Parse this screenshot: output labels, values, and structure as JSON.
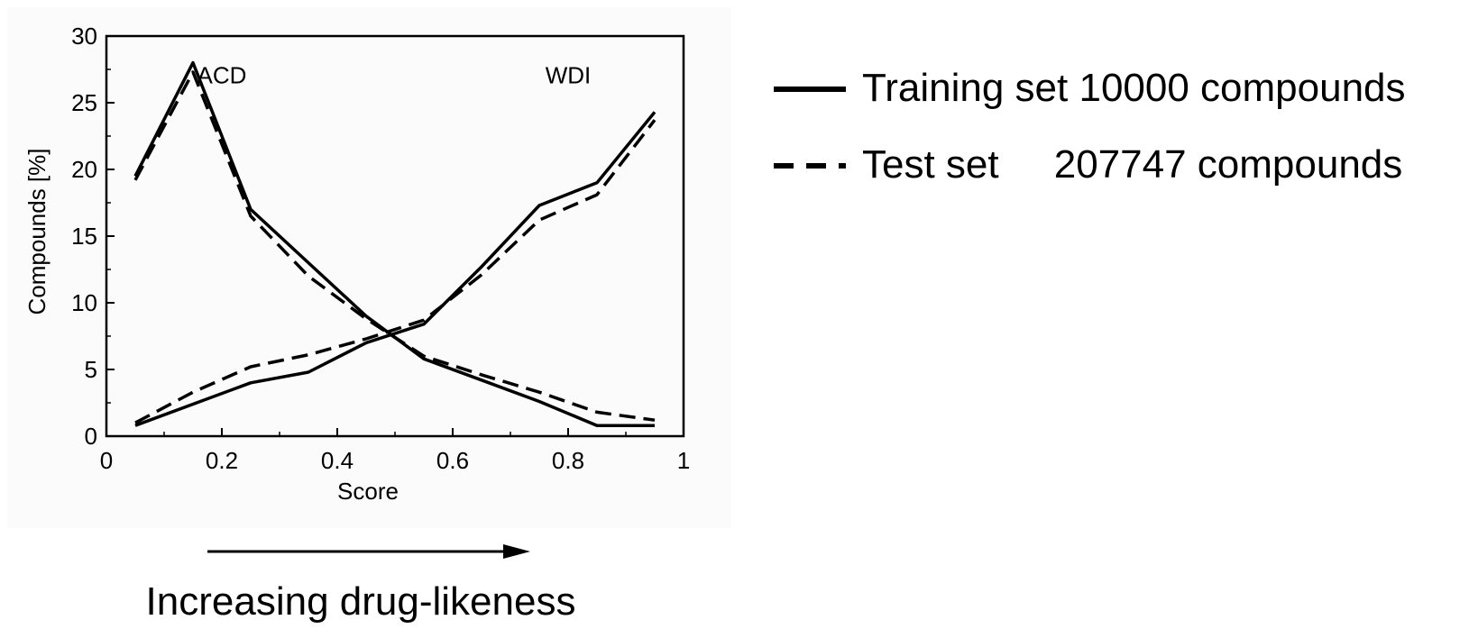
{
  "chart_data": {
    "type": "line",
    "xlabel": "Score",
    "ylabel": "Compounds [%]",
    "xlim": [
      0,
      1
    ],
    "ylim": [
      0,
      30
    ],
    "xticks": [
      0,
      0.2,
      0.4,
      0.6,
      0.8,
      1
    ],
    "xtick_labels": [
      "0",
      "0.2",
      "0.4",
      "0.6",
      "0.8",
      "1"
    ],
    "yticks": [
      0,
      5,
      10,
      15,
      20,
      25,
      30
    ],
    "ytick_labels": [
      "0",
      "5",
      "10",
      "15",
      "20",
      "25",
      "30"
    ],
    "grid": false,
    "annotations": [
      {
        "text": "ACD",
        "x": 0.2,
        "y": 27
      },
      {
        "text": "WDI",
        "x": 0.8,
        "y": 27
      }
    ],
    "x": [
      0.05,
      0.15,
      0.25,
      0.35,
      0.45,
      0.55,
      0.65,
      0.75,
      0.85,
      0.95
    ],
    "series": [
      {
        "group": "ACD",
        "style": "solid",
        "values": [
          19.5,
          28.0,
          17.0,
          13.0,
          9.0,
          5.8,
          4.2,
          2.6,
          0.8,
          0.8
        ]
      },
      {
        "group": "ACD",
        "style": "dashed",
        "values": [
          19.2,
          27.3,
          16.5,
          12.0,
          8.8,
          6.0,
          4.6,
          3.3,
          1.8,
          1.2
        ]
      },
      {
        "group": "WDI",
        "style": "solid",
        "values": [
          0.8,
          2.4,
          4.0,
          4.8,
          7.0,
          8.4,
          12.7,
          17.3,
          19.0,
          24.3
        ]
      },
      {
        "group": "WDI",
        "style": "dashed",
        "values": [
          1.0,
          3.3,
          5.2,
          6.1,
          7.3,
          8.7,
          12.1,
          16.2,
          18.1,
          23.7
        ]
      }
    ],
    "colors": {
      "line": "#000000",
      "axis": "#000000",
      "panel": "#fbfbfb"
    }
  },
  "legend": {
    "training": "Training set 10000 compounds",
    "test": "Test set     207747 compounds"
  },
  "caption": "Increasing drug-likeness"
}
